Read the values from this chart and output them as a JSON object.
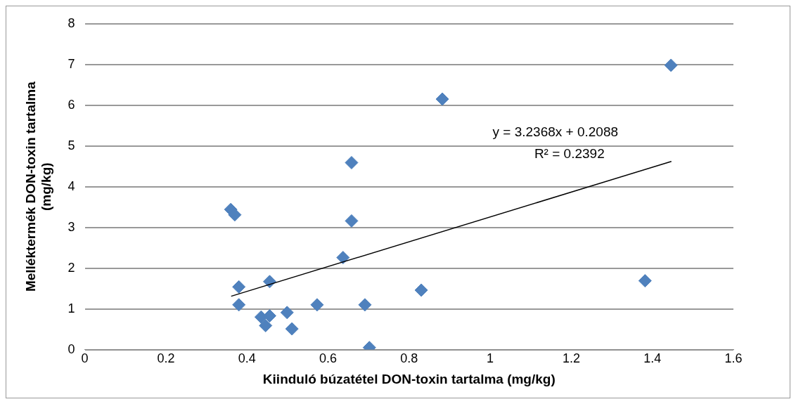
{
  "chart_data": {
    "type": "scatter",
    "xlabel": "Kiinduló búzatétel DON-toxin tartalma (mg/kg)",
    "ylabel": "Melléktermék DON-toxin tartalma (mg/kg)",
    "series": [
      {
        "color": "#4f81bd",
        "x": [
          0.36,
          0.37,
          0.38,
          0.38,
          0.435,
          0.456,
          0.446,
          0.456,
          0.499,
          0.511,
          0.573,
          0.637,
          0.658,
          0.658,
          0.691,
          0.702,
          0.83,
          0.882,
          1.382,
          1.446
        ],
        "values": [
          3.44,
          3.31,
          1.54,
          1.1,
          0.8,
          0.83,
          0.59,
          1.67,
          0.91,
          0.51,
          1.1,
          2.26,
          3.16,
          4.59,
          1.1,
          0.05,
          1.46,
          6.15,
          1.69,
          6.98
        ]
      },
      {
        "type": "line",
        "color": "#000000",
        "x": [
          0.361,
          1.447
        ],
        "values": [
          1.31,
          4.62
        ],
        "marker": "none"
      }
    ],
    "annotations": [
      "y = 3.2368x + 0.2088",
      "R² = 0.2392"
    ],
    "xlim": [
      0,
      1.6
    ],
    "xticks": [
      0,
      0.2,
      0.4,
      0.6,
      0.8,
      1,
      1.2,
      1.4,
      1.6
    ],
    "ylim": [
      0,
      8
    ],
    "yticks": [
      0,
      1,
      2,
      3,
      4,
      5,
      6,
      7,
      8
    ],
    "grid": "y",
    "legend": false,
    "marker": "diamond"
  }
}
